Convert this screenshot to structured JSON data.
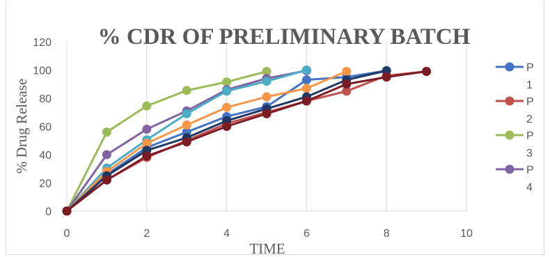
{
  "chart_data": {
    "type": "line",
    "title": "% CDR OF PRELIMINARY BATCH",
    "xlabel": "TIME",
    "ylabel": "% Drug Release",
    "xlim": [
      0,
      10
    ],
    "ylim": [
      0,
      120
    ],
    "x_ticks": [
      "0",
      "2",
      "4",
      "6",
      "8",
      "10"
    ],
    "y_ticks": [
      "0",
      "20",
      "40",
      "60",
      "80",
      "100",
      "120"
    ],
    "grid": "vertical",
    "legend_position": "right",
    "legend": [
      {
        "line1": "P",
        "line2": "1"
      },
      {
        "line1": "P",
        "line2": "2"
      },
      {
        "line1": "P",
        "line2": "3"
      },
      {
        "line1": "P",
        "line2": "4"
      }
    ],
    "series": [
      {
        "name": "P1",
        "color": "#4472c4",
        "x": [
          0,
          1,
          2,
          3,
          4,
          5,
          6,
          7,
          8
        ],
        "y": [
          0,
          26,
          45,
          56,
          67,
          74,
          93,
          95,
          99.5
        ]
      },
      {
        "name": "P2",
        "color": "#c0504d",
        "x": [
          0,
          1,
          2,
          3,
          4,
          5,
          6,
          7,
          8,
          9
        ],
        "y": [
          0,
          22,
          38,
          50,
          62,
          70,
          78,
          85,
          96,
          99
        ]
      },
      {
        "name": "P3",
        "color": "#9bbb59",
        "x": [
          0,
          1,
          2,
          3,
          4,
          5
        ],
        "y": [
          0,
          56,
          74.5,
          85.5,
          91.5,
          99
        ]
      },
      {
        "name": "P4",
        "color": "#8064a2",
        "x": [
          0,
          1,
          2,
          3,
          4,
          5,
          6
        ],
        "y": [
          0,
          40,
          58,
          71,
          86,
          94,
          99.5
        ]
      },
      {
        "color": "#4bacc6",
        "x": [
          0,
          1,
          2,
          3,
          4,
          5,
          6
        ],
        "y": [
          0,
          30.5,
          50.5,
          69,
          85,
          92,
          100
        ]
      },
      {
        "color": "#f79646",
        "x": [
          0,
          1,
          2,
          3,
          4,
          5,
          6,
          7
        ],
        "y": [
          0,
          28,
          48,
          61,
          73.5,
          81,
          87,
          99
        ]
      },
      {
        "color": "#1f3864",
        "x": [
          0,
          1,
          2,
          3,
          4,
          5,
          6,
          7,
          8
        ],
        "y": [
          0,
          25,
          43,
          52,
          64,
          72.5,
          81,
          93,
          99.5
        ]
      },
      {
        "color": "#7b1c25",
        "x": [
          0,
          1,
          2,
          3,
          4,
          5,
          6,
          7,
          8,
          9
        ],
        "y": [
          0,
          22,
          39,
          49,
          60,
          69,
          78,
          90,
          95,
          99
        ]
      }
    ]
  }
}
